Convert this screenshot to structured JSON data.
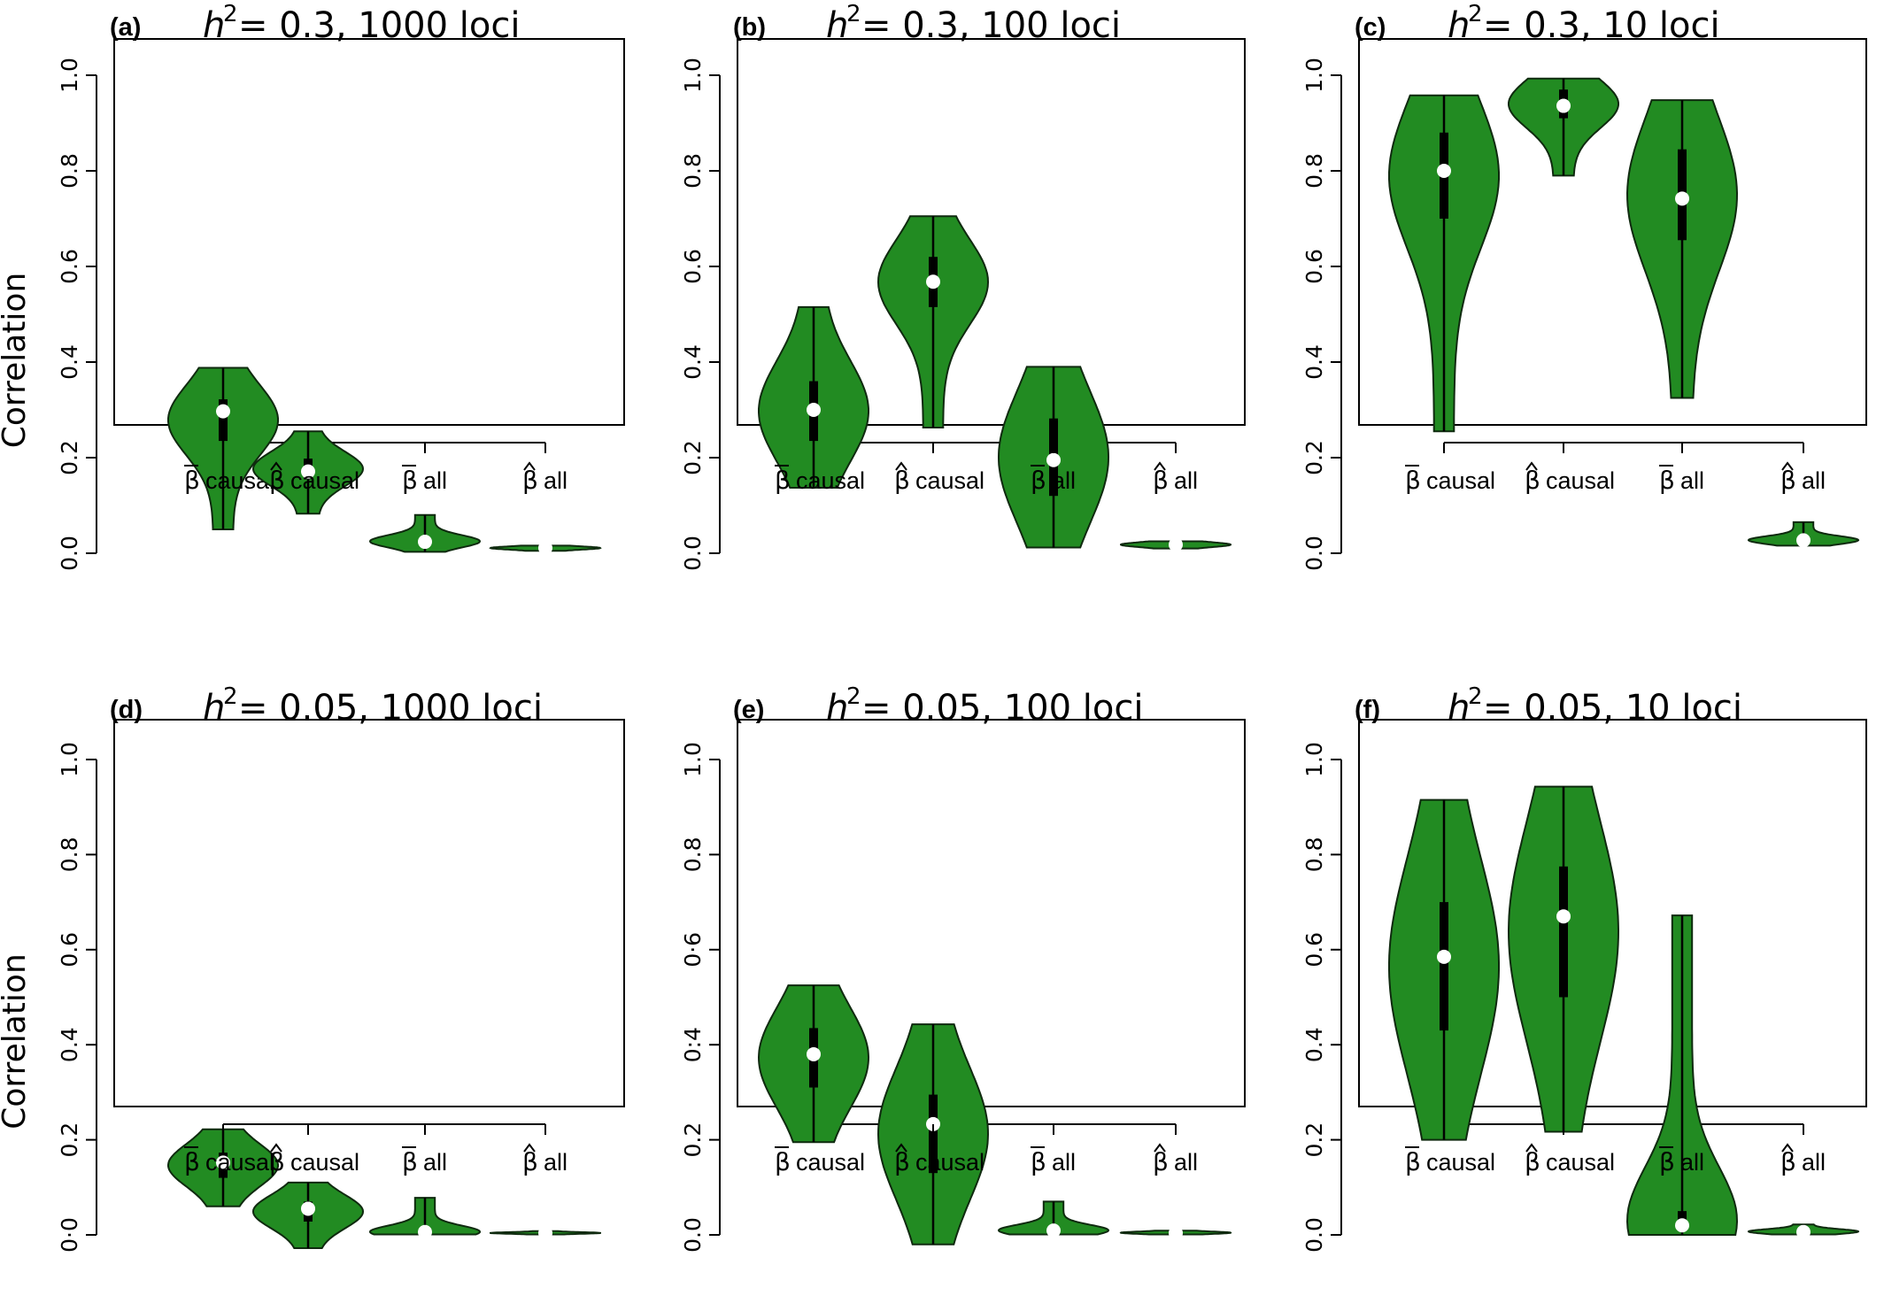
{
  "figure": {
    "y_axis_label": "Correlation",
    "violin_color": "#228B22",
    "median_color": "#ffffff"
  },
  "chart_data": [
    {
      "type": "violin",
      "panel_letter": "(a)",
      "title_value": "= 0.3, 1000 loci",
      "ylabel": "Correlation",
      "ylim": [
        0,
        1
      ],
      "y_ticks": [
        "0.0",
        "0.2",
        "0.4",
        "0.6",
        "0.8",
        "1.0"
      ],
      "categories": [
        {
          "accent": "bar",
          "label": "causal",
          "min": 0.05,
          "q1": 0.235,
          "median": 0.297,
          "q3": 0.322,
          "max": 0.388
        },
        {
          "accent": "hat",
          "label": "causal",
          "min": 0.083,
          "q1": 0.155,
          "median": 0.171,
          "q3": 0.198,
          "max": 0.255
        },
        {
          "accent": "bar",
          "label": "all",
          "min": 0.003,
          "q1": 0.018,
          "median": 0.024,
          "q3": 0.032,
          "max": 0.08
        },
        {
          "accent": "hat",
          "label": "all",
          "min": 0.005,
          "q1": 0.009,
          "median": 0.011,
          "q3": 0.013,
          "max": 0.016
        }
      ]
    },
    {
      "type": "violin",
      "panel_letter": "(b)",
      "title_value": "= 0.3, 100 loci",
      "ylabel": "",
      "ylim": [
        0,
        1
      ],
      "y_ticks": [
        "0.0",
        "0.2",
        "0.4",
        "0.6",
        "0.8",
        "1.0"
      ],
      "categories": [
        {
          "accent": "bar",
          "label": "causal",
          "min": 0.137,
          "q1": 0.235,
          "median": 0.3,
          "q3": 0.36,
          "max": 0.515
        },
        {
          "accent": "hat",
          "label": "causal",
          "min": 0.263,
          "q1": 0.515,
          "median": 0.568,
          "q3": 0.62,
          "max": 0.705
        },
        {
          "accent": "bar",
          "label": "all",
          "min": 0.012,
          "q1": 0.12,
          "median": 0.195,
          "q3": 0.282,
          "max": 0.39
        },
        {
          "accent": "hat",
          "label": "all",
          "min": 0.01,
          "q1": 0.015,
          "median": 0.018,
          "q3": 0.021,
          "max": 0.025
        }
      ]
    },
    {
      "type": "violin",
      "panel_letter": "(c)",
      "title_value": "= 0.3, 10 loci",
      "ylabel": "",
      "ylim": [
        0,
        1
      ],
      "y_ticks": [
        "0.0",
        "0.2",
        "0.4",
        "0.6",
        "0.8",
        "1.0"
      ],
      "categories": [
        {
          "accent": "bar",
          "label": "causal",
          "min": 0.255,
          "q1": 0.7,
          "median": 0.8,
          "q3": 0.88,
          "max": 0.958
        },
        {
          "accent": "hat",
          "label": "causal",
          "min": 0.79,
          "q1": 0.91,
          "median": 0.936,
          "q3": 0.97,
          "max": 0.993
        },
        {
          "accent": "bar",
          "label": "all",
          "min": 0.325,
          "q1": 0.655,
          "median": 0.742,
          "q3": 0.845,
          "max": 0.948
        },
        {
          "accent": "hat",
          "label": "all",
          "min": 0.016,
          "q1": 0.023,
          "median": 0.027,
          "q3": 0.032,
          "max": 0.065
        }
      ]
    },
    {
      "type": "violin",
      "panel_letter": "(d)",
      "title_value": "= 0.05, 1000 loci",
      "ylabel": "Correlation",
      "ylim": [
        0,
        1
      ],
      "y_ticks": [
        "0·0",
        "0.2",
        "0.4",
        "0.6",
        "0.8",
        "1.0"
      ],
      "categories": [
        {
          "accent": "bar",
          "label": "causal",
          "min": 0.06,
          "q1": 0.12,
          "median": 0.152,
          "q3": 0.173,
          "max": 0.222
        },
        {
          "accent": "hat",
          "label": "causal",
          "min": -0.028,
          "q1": 0.028,
          "median": 0.055,
          "q3": 0.07,
          "max": 0.11
        },
        {
          "accent": "bar",
          "label": "all",
          "min": 0.001,
          "q1": 0.004,
          "median": 0.006,
          "q3": 0.009,
          "max": 0.078
        },
        {
          "accent": "hat",
          "label": "all",
          "min": 0.001,
          "q1": 0.003,
          "median": 0.004,
          "q3": 0.005,
          "max": 0.008
        }
      ]
    },
    {
      "type": "violin",
      "panel_letter": "(e)",
      "title_value": "= 0.05, 100 loci",
      "ylabel": "",
      "ylim": [
        0,
        1
      ],
      "y_ticks": [
        "0.0",
        "0.2",
        "0:4",
        "0·6",
        "0.8",
        "1.0"
      ],
      "categories": [
        {
          "accent": "bar",
          "label": "causal",
          "min": 0.195,
          "q1": 0.31,
          "median": 0.38,
          "q3": 0.435,
          "max": 0.525
        },
        {
          "accent": "hat",
          "label": "causal",
          "min": -0.02,
          "q1": 0.13,
          "median": 0.233,
          "q3": 0.295,
          "max": 0.443
        },
        {
          "accent": "bar",
          "label": "all",
          "min": 0.001,
          "q1": 0.006,
          "median": 0.009,
          "q3": 0.013,
          "max": 0.07
        },
        {
          "accent": "hat",
          "label": "all",
          "min": 0.001,
          "q1": 0.003,
          "median": 0.004,
          "q3": 0.006,
          "max": 0.009
        }
      ]
    },
    {
      "type": "violin",
      "panel_letter": "(f)",
      "title_value": "= 0.05, 10 loci",
      "ylabel": "",
      "ylim": [
        0,
        1
      ],
      "y_ticks": [
        "0.0",
        "0.2",
        "0.4",
        "0.6",
        "0.8",
        "1.0"
      ],
      "categories": [
        {
          "accent": "bar",
          "label": "causal",
          "min": 0.2,
          "q1": 0.43,
          "median": 0.585,
          "q3": 0.7,
          "max": 0.915
        },
        {
          "accent": "hat",
          "label": "causal",
          "min": 0.217,
          "q1": 0.5,
          "median": 0.67,
          "q3": 0.775,
          "max": 0.943
        },
        {
          "accent": "bar",
          "label": "all",
          "min": 0.0,
          "q1": 0.01,
          "median": 0.02,
          "q3": 0.05,
          "max": 0.672
        },
        {
          "accent": "hat",
          "label": "all",
          "min": 0.001,
          "q1": 0.004,
          "median": 0.006,
          "q3": 0.01,
          "max": 0.022
        }
      ]
    }
  ]
}
